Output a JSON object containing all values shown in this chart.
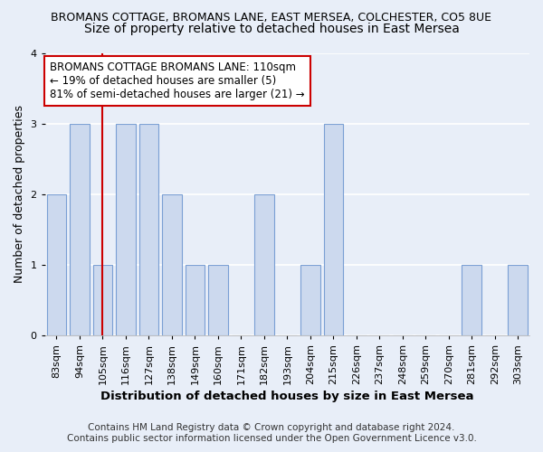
{
  "title": "BROMANS COTTAGE, BROMANS LANE, EAST MERSEA, COLCHESTER, CO5 8UE",
  "subtitle": "Size of property relative to detached houses in East Mersea",
  "xlabel": "Distribution of detached houses by size in East Mersea",
  "ylabel": "Number of detached properties",
  "categories": [
    "83sqm",
    "94sqm",
    "105sqm",
    "116sqm",
    "127sqm",
    "138sqm",
    "149sqm",
    "160sqm",
    "171sqm",
    "182sqm",
    "193sqm",
    "204sqm",
    "215sqm",
    "226sqm",
    "237sqm",
    "248sqm",
    "259sqm",
    "270sqm",
    "281sqm",
    "292sqm",
    "303sqm"
  ],
  "values": [
    2,
    3,
    1,
    3,
    3,
    2,
    1,
    1,
    0,
    2,
    0,
    1,
    3,
    0,
    0,
    0,
    0,
    0,
    1,
    0,
    1
  ],
  "bar_color": "#ccd9ee",
  "bar_edge_color": "#7a9fd4",
  "highlight_index": 2,
  "highlight_line_color": "#cc0000",
  "ylim": [
    0,
    4
  ],
  "yticks": [
    0,
    1,
    2,
    3,
    4
  ],
  "annotation_title": "BROMANS COTTAGE BROMANS LANE: 110sqm",
  "annotation_line1": "← 19% of detached houses are smaller (5)",
  "annotation_line2": "81% of semi-detached houses are larger (21) →",
  "annotation_box_color": "#ffffff",
  "annotation_box_edge_color": "#cc0000",
  "footer1": "Contains HM Land Registry data © Crown copyright and database right 2024.",
  "footer2": "Contains public sector information licensed under the Open Government Licence v3.0.",
  "background_color": "#e8eef8",
  "plot_bg_color": "#e8eef8",
  "grid_color": "#ffffff",
  "title_fontsize": 9,
  "subtitle_fontsize": 10,
  "xlabel_fontsize": 9.5,
  "ylabel_fontsize": 9,
  "tick_fontsize": 8,
  "annotation_fontsize": 8.5,
  "footer_fontsize": 7.5
}
